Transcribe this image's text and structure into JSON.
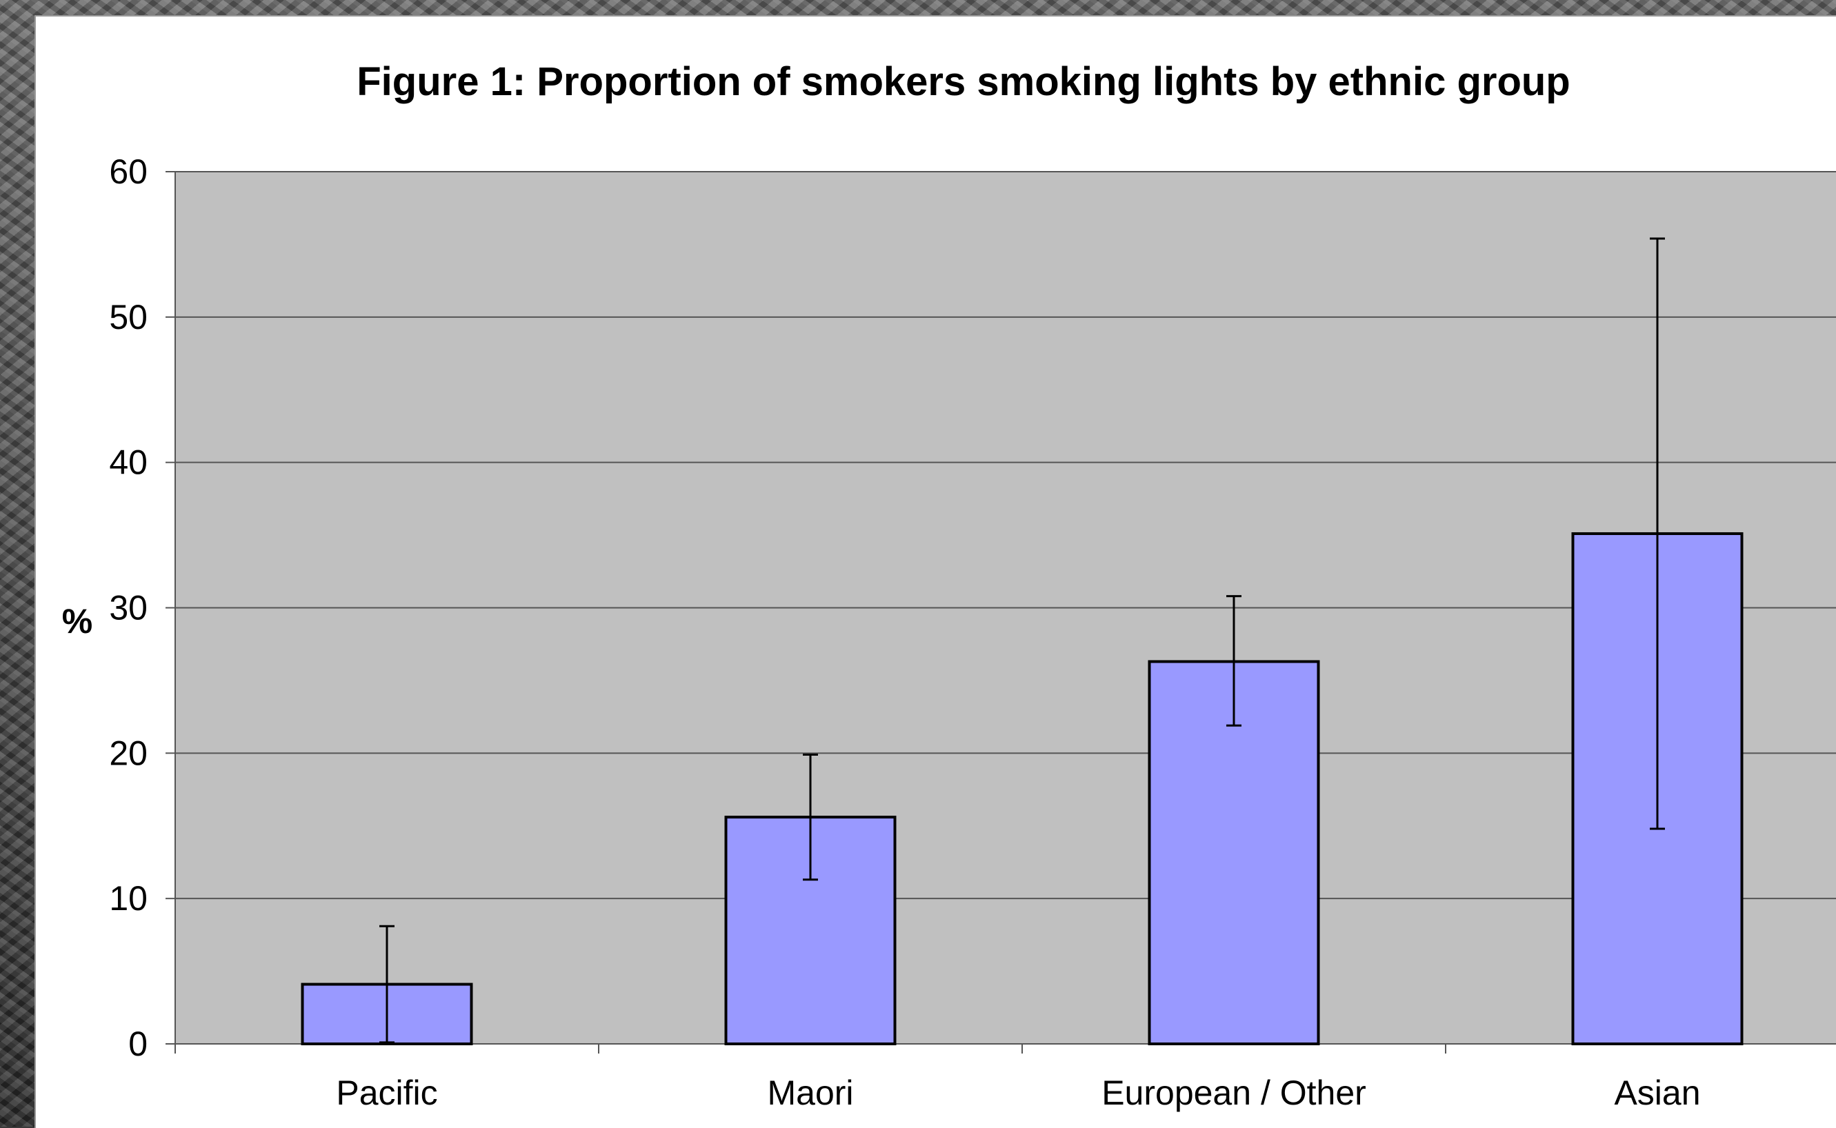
{
  "chart_data": {
    "type": "bar",
    "title": "Figure 1: Proportion of smokers smoking lights by ethnic group",
    "ylabel": "%",
    "xlabel": "",
    "categories": [
      "Pacific",
      "Maori",
      "European / Other",
      "Asian"
    ],
    "values": [
      4.1,
      15.6,
      26.3,
      35.1
    ],
    "error_low": [
      0.1,
      11.3,
      21.9,
      14.8
    ],
    "error_high": [
      8.1,
      19.9,
      30.8,
      55.4
    ],
    "ylim": [
      0,
      60
    ],
    "yticks": [
      "0",
      "10",
      "20",
      "30",
      "40",
      "50",
      "60"
    ],
    "grid": true,
    "colors": {
      "bar": "#9999ff",
      "plot_background": "#c0c0c0",
      "gridline": "#555555",
      "bar_border": "#000000"
    }
  }
}
